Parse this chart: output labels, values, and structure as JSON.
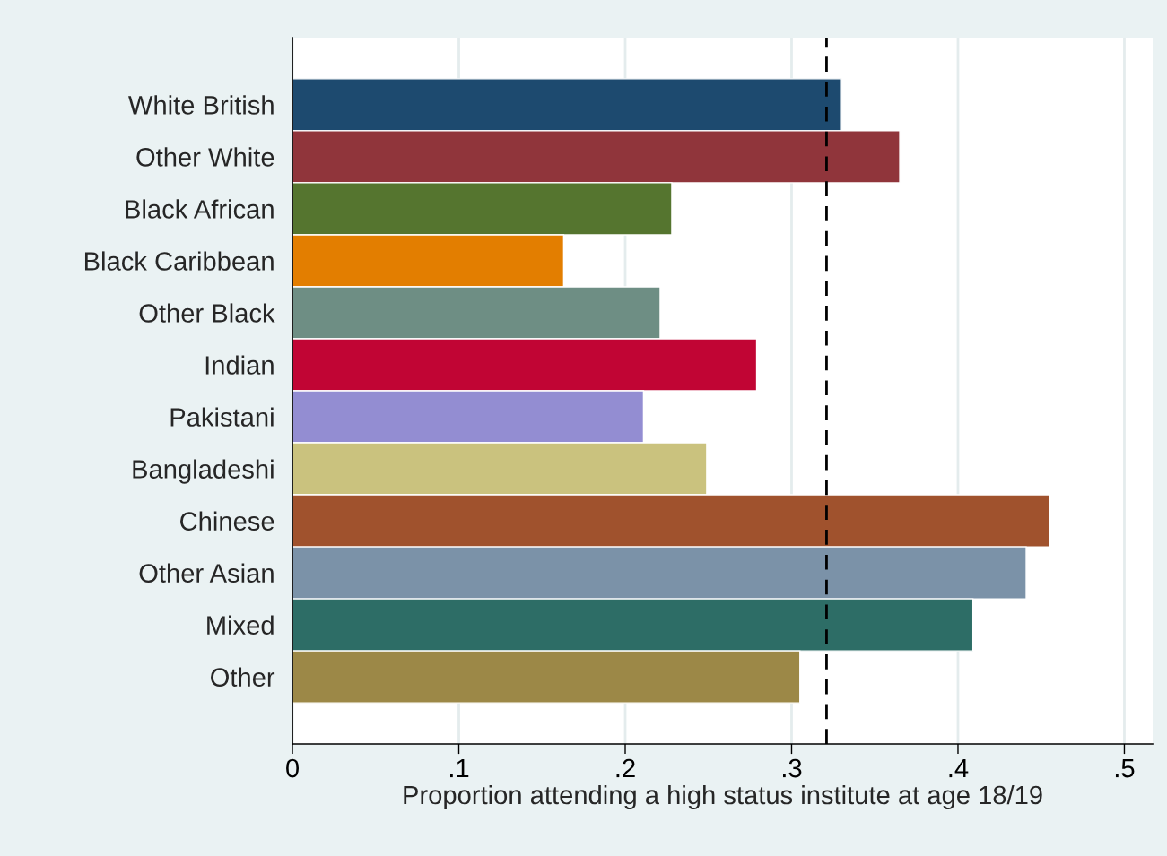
{
  "chart_data": {
    "type": "bar",
    "orientation": "horizontal",
    "xlabel": "Proportion attending a high status institute at age 18/19",
    "categories": [
      "White British",
      "Other White",
      "Black African",
      "Black Caribbean",
      "Other Black",
      "Indian",
      "Pakistani",
      "Bangladeshi",
      "Chinese",
      "Other Asian",
      "Mixed",
      "Other"
    ],
    "values": [
      0.33,
      0.365,
      0.228,
      0.163,
      0.221,
      0.279,
      0.211,
      0.249,
      0.455,
      0.441,
      0.409,
      0.305
    ],
    "colors": [
      "#1d4a6f",
      "#90353b",
      "#55752f",
      "#e37e00",
      "#6e8e84",
      "#c10534",
      "#938dd2",
      "#cac27e",
      "#a0522d",
      "#7b92a8",
      "#2d6d66",
      "#9c8847"
    ],
    "xlim": [
      0,
      0.517
    ],
    "xticks": [
      0,
      {
        "value": 0.1,
        "label": ".1"
      },
      {
        "value": 0.2,
        "label": ".2"
      },
      {
        "value": 0.3,
        "label": ".3"
      },
      {
        "value": 0.4,
        "label": ".4"
      },
      {
        "value": 0.5,
        "label": ".5"
      }
    ],
    "grid": "x",
    "ref_lines": [
      {
        "axis": "x",
        "value": 0.321,
        "color": "#000000",
        "line_style": "dashed"
      }
    ]
  }
}
